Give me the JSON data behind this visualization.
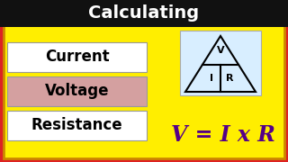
{
  "title": "Calculating",
  "title_bg": "#111111",
  "title_color": "#ffffff",
  "main_bg": "#ffee00",
  "border_outer_color": "#dd2222",
  "border_inner_color": "#cc8800",
  "labels": [
    "Current",
    "Voltage",
    "Resistance"
  ],
  "label_bg": [
    "#ffffff",
    "#d4a0a0",
    "#ffffff"
  ],
  "label_text_color": "#000000",
  "formula": "V = I x R",
  "formula_color": "#550088",
  "triangle_bg": "#d8eeff",
  "triangle_letter_color": "#000000",
  "figw": 3.2,
  "figh": 1.8,
  "dpi": 100
}
